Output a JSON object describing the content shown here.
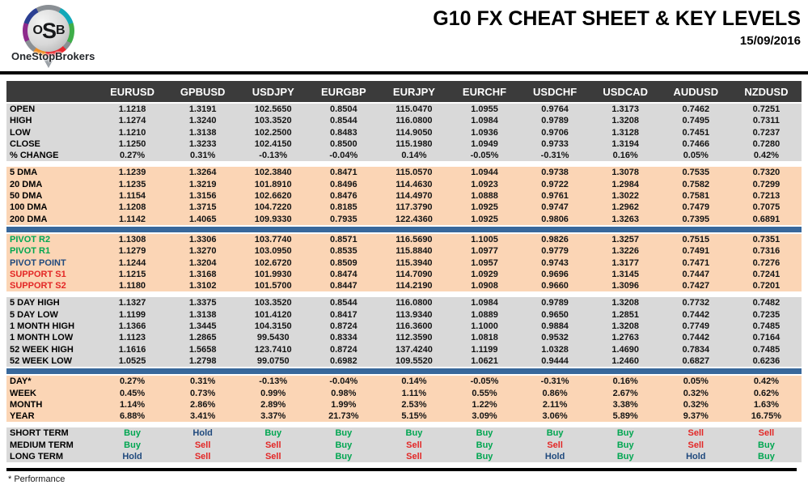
{
  "header": {
    "logo": {
      "letters": [
        "O",
        "S",
        "B"
      ],
      "brand": "OneStopBrokers"
    },
    "title": "G10 FX CHEAT SHEET & KEY LEVELS",
    "date": "15/09/2016"
  },
  "colors": {
    "header_bar": "#3b3b3b",
    "row_gray": "#d9d9d9",
    "row_peach": "#fbd5b5",
    "divider_blue": "#38689b",
    "buy_green": "#00a651",
    "sell_red": "#e32726",
    "hold_navy": "#1f497d"
  },
  "table": {
    "columns": [
      "EURUSD",
      "GPBUSD",
      "USDJPY",
      "EURGBP",
      "EURJPY",
      "EURCHF",
      "USDCHF",
      "USDCAD",
      "AUDUSD",
      "NZDUSD"
    ],
    "sections": [
      {
        "bg": "gray",
        "after": "gap",
        "rows": [
          {
            "label": "OPEN",
            "values": [
              "1.1218",
              "1.3191",
              "102.5650",
              "0.8504",
              "115.0470",
              "1.0955",
              "0.9764",
              "1.3173",
              "0.7462",
              "0.7251"
            ]
          },
          {
            "label": "HIGH",
            "values": [
              "1.1274",
              "1.3240",
              "103.3520",
              "0.8544",
              "116.0800",
              "1.0984",
              "0.9789",
              "1.3208",
              "0.7495",
              "0.7311"
            ]
          },
          {
            "label": "LOW",
            "values": [
              "1.1210",
              "1.3138",
              "102.2500",
              "0.8483",
              "114.9050",
              "1.0936",
              "0.9706",
              "1.3128",
              "0.7451",
              "0.7237"
            ]
          },
          {
            "label": "CLOSE",
            "values": [
              "1.1250",
              "1.3233",
              "102.4150",
              "0.8500",
              "115.1980",
              "1.0949",
              "0.9733",
              "1.3194",
              "0.7466",
              "0.7280"
            ]
          },
          {
            "label": "% CHANGE",
            "values": [
              "0.27%",
              "0.31%",
              "-0.13%",
              "-0.04%",
              "0.14%",
              "-0.05%",
              "-0.31%",
              "0.16%",
              "0.05%",
              "0.42%"
            ]
          }
        ]
      },
      {
        "bg": "peach",
        "after": "blue",
        "rows": [
          {
            "label": "5 DMA",
            "values": [
              "1.1239",
              "1.3264",
              "102.3840",
              "0.8471",
              "115.0570",
              "1.0944",
              "0.9738",
              "1.3078",
              "0.7535",
              "0.7320"
            ]
          },
          {
            "label": "20 DMA",
            "values": [
              "1.1235",
              "1.3219",
              "101.8910",
              "0.8496",
              "114.4630",
              "1.0923",
              "0.9722",
              "1.2984",
              "0.7582",
              "0.7299"
            ]
          },
          {
            "label": "50 DMA",
            "values": [
              "1.1154",
              "1.3156",
              "102.6620",
              "0.8476",
              "114.4970",
              "1.0888",
              "0.9761",
              "1.3022",
              "0.7581",
              "0.7213"
            ]
          },
          {
            "label": "100 DMA",
            "values": [
              "1.1208",
              "1.3715",
              "104.7220",
              "0.8185",
              "117.3790",
              "1.0925",
              "0.9747",
              "1.2962",
              "0.7479",
              "0.7075"
            ]
          },
          {
            "label": "200 DMA",
            "values": [
              "1.1142",
              "1.4065",
              "109.9330",
              "0.7935",
              "122.4360",
              "1.0925",
              "0.9806",
              "1.3263",
              "0.7395",
              "0.6891"
            ]
          }
        ]
      },
      {
        "bg": "peach",
        "after": "gap",
        "rows": [
          {
            "label": "PIVOT R2",
            "label_color": "green",
            "values": [
              "1.1308",
              "1.3306",
              "103.7740",
              "0.8571",
              "116.5690",
              "1.1005",
              "0.9826",
              "1.3257",
              "0.7515",
              "0.7351"
            ]
          },
          {
            "label": "PIVOT R1",
            "label_color": "green",
            "values": [
              "1.1279",
              "1.3270",
              "103.0950",
              "0.8535",
              "115.8840",
              "1.0977",
              "0.9779",
              "1.3226",
              "0.7491",
              "0.7316"
            ]
          },
          {
            "label": "PIVOT POINT",
            "label_color": "navy",
            "values": [
              "1.1244",
              "1.3204",
              "102.6720",
              "0.8509",
              "115.3940",
              "1.0957",
              "0.9743",
              "1.3177",
              "0.7471",
              "0.7276"
            ]
          },
          {
            "label": "SUPPORT S1",
            "label_color": "red",
            "values": [
              "1.1215",
              "1.3168",
              "101.9930",
              "0.8474",
              "114.7090",
              "1.0929",
              "0.9696",
              "1.3145",
              "0.7447",
              "0.7241"
            ]
          },
          {
            "label": "SUPPORT S2",
            "label_color": "red",
            "values": [
              "1.1180",
              "1.3102",
              "101.5700",
              "0.8447",
              "114.2190",
              "1.0908",
              "0.9660",
              "1.3096",
              "0.7427",
              "0.7201"
            ]
          }
        ]
      },
      {
        "bg": "gray",
        "after": "blue",
        "rows": [
          {
            "label": "5 DAY HIGH",
            "values": [
              "1.1327",
              "1.3375",
              "103.3520",
              "0.8544",
              "116.0800",
              "1.0984",
              "0.9789",
              "1.3208",
              "0.7732",
              "0.7482"
            ]
          },
          {
            "label": "5 DAY LOW",
            "values": [
              "1.1199",
              "1.3138",
              "101.4120",
              "0.8417",
              "113.9340",
              "1.0889",
              "0.9650",
              "1.2851",
              "0.7442",
              "0.7235"
            ]
          },
          {
            "label": "1 MONTH HIGH",
            "values": [
              "1.1366",
              "1.3445",
              "104.3150",
              "0.8724",
              "116.3600",
              "1.1000",
              "0.9884",
              "1.3208",
              "0.7749",
              "0.7485"
            ]
          },
          {
            "label": "1 MONTH LOW",
            "values": [
              "1.1123",
              "1.2865",
              "99.5430",
              "0.8334",
              "112.3590",
              "1.0818",
              "0.9532",
              "1.2763",
              "0.7442",
              "0.7164"
            ]
          },
          {
            "label": "52 WEEK HIGH",
            "values": [
              "1.1616",
              "1.5658",
              "123.7410",
              "0.8724",
              "137.4240",
              "1.1199",
              "1.0328",
              "1.4690",
              "0.7834",
              "0.7485"
            ]
          },
          {
            "label": "52 WEEK LOW",
            "values": [
              "1.0525",
              "1.2798",
              "99.0750",
              "0.6982",
              "109.5520",
              "1.0621",
              "0.9444",
              "1.2460",
              "0.6827",
              "0.6236"
            ]
          }
        ]
      },
      {
        "bg": "peach",
        "after": "gap",
        "rows": [
          {
            "label": "DAY*",
            "values": [
              "0.27%",
              "0.31%",
              "-0.13%",
              "-0.04%",
              "0.14%",
              "-0.05%",
              "-0.31%",
              "0.16%",
              "0.05%",
              "0.42%"
            ]
          },
          {
            "label": "WEEK",
            "values": [
              "0.45%",
              "0.73%",
              "0.99%",
              "0.98%",
              "1.11%",
              "0.55%",
              "0.86%",
              "2.67%",
              "0.32%",
              "0.62%"
            ]
          },
          {
            "label": "MONTH",
            "values": [
              "1.14%",
              "2.86%",
              "2.89%",
              "1.99%",
              "2.53%",
              "1.22%",
              "2.11%",
              "3.38%",
              "0.32%",
              "1.63%"
            ]
          },
          {
            "label": "YEAR",
            "values": [
              "6.88%",
              "3.41%",
              "3.37%",
              "21.73%",
              "5.15%",
              "3.09%",
              "3.06%",
              "5.89%",
              "9.37%",
              "16.75%"
            ]
          }
        ]
      },
      {
        "bg": "gray",
        "rows": [
          {
            "label": "SHORT TERM",
            "values": [
              "Buy",
              "Hold",
              "Buy",
              "Buy",
              "Buy",
              "Buy",
              "Buy",
              "Buy",
              "Sell",
              "Sell"
            ]
          },
          {
            "label": "MEDIUM TERM",
            "values": [
              "Buy",
              "Sell",
              "Sell",
              "Buy",
              "Sell",
              "Buy",
              "Sell",
              "Buy",
              "Sell",
              "Buy"
            ]
          },
          {
            "label": "LONG TERM",
            "values": [
              "Hold",
              "Sell",
              "Sell",
              "Buy",
              "Sell",
              "Buy",
              "Hold",
              "Buy",
              "Hold",
              "Buy"
            ]
          }
        ]
      }
    ]
  },
  "footer": {
    "note": "* Performance"
  }
}
